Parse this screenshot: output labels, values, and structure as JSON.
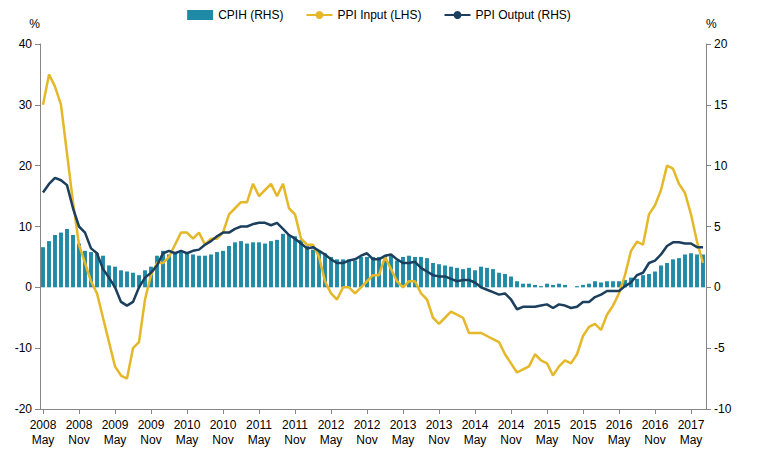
{
  "chart_data": {
    "type": "line",
    "ylabel": "%",
    "y2label": "%",
    "legend": "top",
    "grid": false,
    "ylim": [
      -20,
      40
    ],
    "yticks": [
      -20,
      -10,
      0,
      10,
      20,
      30,
      40
    ],
    "y2lim": [
      -10,
      20
    ],
    "y2ticks": [
      -10,
      -5,
      0,
      5,
      10,
      15,
      20
    ],
    "categories": [
      "2008\nMay",
      null,
      null,
      null,
      null,
      null,
      "2008\nNov",
      null,
      null,
      null,
      null,
      null,
      "2009\nMay",
      null,
      null,
      null,
      null,
      null,
      "2009\nNov",
      null,
      null,
      null,
      null,
      null,
      "2010\nMay",
      null,
      null,
      null,
      null,
      null,
      "2010\nNov",
      null,
      null,
      null,
      null,
      null,
      "2011\nMay",
      null,
      null,
      null,
      null,
      null,
      "2011\nNov",
      null,
      null,
      null,
      null,
      null,
      "2012\nMay",
      null,
      null,
      null,
      null,
      null,
      "2012\nNov",
      null,
      null,
      null,
      null,
      null,
      "2013\nMay",
      null,
      null,
      null,
      null,
      null,
      "2013\nNov",
      null,
      null,
      null,
      null,
      null,
      "2014\nMay",
      null,
      null,
      null,
      null,
      null,
      "2014\nNov",
      null,
      null,
      null,
      null,
      null,
      "2015\nMay",
      null,
      null,
      null,
      null,
      null,
      "2015\nNov",
      null,
      null,
      null,
      null,
      null,
      "2016\nMay",
      null,
      null,
      null,
      null,
      null,
      "2016\nNov",
      null,
      null,
      null,
      null,
      null,
      "2017\nMay",
      null,
      null
    ],
    "series": [
      {
        "name": "CPIH (RHS)",
        "type": "bar",
        "axis": "y2",
        "color": "#1f8aa6",
        "values": [
          3.3,
          3.8,
          4.3,
          4.5,
          4.8,
          4.3,
          3.6,
          3.0,
          2.9,
          2.8,
          2.6,
          1.8,
          1.7,
          1.4,
          1.3,
          1.2,
          1.0,
          1.4,
          1.7,
          2.6,
          3.0,
          2.7,
          2.8,
          2.9,
          2.9,
          2.7,
          2.6,
          2.6,
          2.7,
          2.9,
          3.0,
          3.4,
          3.7,
          3.8,
          3.6,
          3.7,
          3.7,
          3.6,
          3.8,
          3.9,
          4.4,
          4.3,
          4.2,
          3.9,
          3.4,
          3.1,
          3.0,
          2.8,
          2.5,
          2.3,
          2.3,
          2.3,
          2.2,
          2.5,
          2.5,
          2.5,
          2.5,
          2.6,
          2.6,
          2.2,
          2.5,
          2.6,
          2.5,
          2.5,
          2.4,
          2.0,
          1.9,
          1.8,
          1.7,
          1.6,
          1.5,
          1.6,
          1.4,
          1.7,
          1.6,
          1.5,
          1.2,
          1.1,
          0.9,
          0.5,
          0.3,
          0.3,
          0.2,
          0.1,
          0.3,
          0.2,
          0.3,
          0.2,
          0.0,
          0.1,
          0.2,
          0.3,
          0.5,
          0.4,
          0.5,
          0.5,
          0.5,
          0.6,
          0.8,
          0.7,
          1.0,
          1.1,
          1.3,
          1.8,
          2.0,
          2.3,
          2.4,
          2.7,
          2.8,
          2.7,
          2.7
        ]
      },
      {
        "name": "PPI Input (LHS)",
        "type": "line",
        "axis": "y",
        "color": "#e5b82a",
        "values": [
          30,
          35,
          33,
          30,
          22,
          14,
          7,
          4,
          1,
          -1,
          -5,
          -9,
          -13,
          -14.5,
          -15,
          -10,
          -9,
          -2,
          2,
          4,
          4,
          5,
          7,
          9,
          9,
          8,
          9,
          7,
          8,
          8,
          9,
          12,
          13,
          14,
          14,
          17,
          15,
          16,
          17,
          15,
          17,
          13,
          12,
          8,
          7,
          7,
          5,
          1,
          -1,
          -2,
          0,
          0,
          -1,
          0,
          1,
          2,
          2,
          5,
          3,
          1,
          0,
          1,
          1,
          -1,
          -2,
          -5,
          -6,
          -5,
          -4,
          -4.5,
          -5,
          -7.5,
          -7.5,
          -7.5,
          -8,
          -8.5,
          -9,
          -11,
          -12.5,
          -14,
          -13.5,
          -13,
          -11,
          -12,
          -12.5,
          -14.5,
          -13,
          -12,
          -12.5,
          -11,
          -8,
          -6.5,
          -6,
          -7,
          -4.5,
          -3,
          -1,
          2,
          6,
          7.5,
          7,
          12,
          13.5,
          16,
          20,
          19.5,
          17,
          15.5,
          12,
          7.5,
          4
        ]
      },
      {
        "name": "PPI Output (RHS)",
        "type": "line",
        "axis": "y2",
        "color": "#1c3f5e",
        "values": [
          7.8,
          8.5,
          9,
          8.8,
          8.4,
          6.5,
          5,
          4.5,
          3.2,
          2.8,
          1.5,
          0.8,
          0,
          -1.2,
          -1.5,
          -1.2,
          0,
          0.8,
          1.2,
          1.8,
          2.8,
          3,
          2.8,
          3,
          2.8,
          3,
          3.1,
          3.5,
          3.8,
          4.2,
          4.5,
          4.5,
          4.8,
          5,
          5,
          5.2,
          5.3,
          5.3,
          5.1,
          5.3,
          4.8,
          4.3,
          4.0,
          3.6,
          3.2,
          3.3,
          3.0,
          2.7,
          2.3,
          2.0,
          2.0,
          2.2,
          2.3,
          2.6,
          2.8,
          2.3,
          2.3,
          2.6,
          2.7,
          2.3,
          2.0,
          2.0,
          2.1,
          1.6,
          1.3,
          1.0,
          0.9,
          0.9,
          0.7,
          0.5,
          0.6,
          0.6,
          0.4,
          0,
          -0.2,
          -0.4,
          -0.6,
          -0.5,
          -1.0,
          -1.8,
          -1.6,
          -1.6,
          -1.6,
          -1.5,
          -1.4,
          -1.7,
          -1.4,
          -1.5,
          -1.7,
          -1.6,
          -1.2,
          -1.2,
          -0.8,
          -0.6,
          -0.3,
          -0.3,
          -0.3,
          0.1,
          0.4,
          1.0,
          1.2,
          2.0,
          2.2,
          2.7,
          3.4,
          3.7,
          3.7,
          3.6,
          3.6,
          3.3,
          3.3
        ]
      }
    ]
  }
}
